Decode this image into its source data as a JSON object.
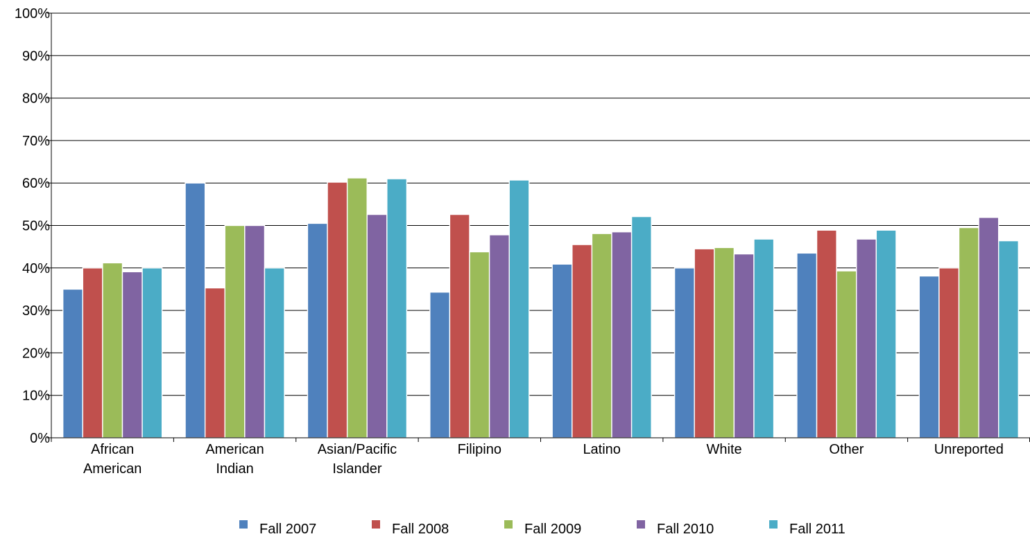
{
  "chart_data": {
    "type": "bar",
    "title": "",
    "xlabel": "",
    "ylabel": "",
    "ylim": [
      0,
      100
    ],
    "yticks": [
      "0%",
      "10%",
      "20%",
      "30%",
      "40%",
      "50%",
      "60%",
      "70%",
      "80%",
      "90%",
      "100%"
    ],
    "grid": true,
    "legend_position": "bottom",
    "categories": [
      [
        "African",
        "American"
      ],
      [
        "American",
        "Indian"
      ],
      [
        "Asian/Pacific",
        "Islander"
      ],
      [
        "Filipino"
      ],
      [
        "Latino"
      ],
      [
        "White"
      ],
      [
        "Other"
      ],
      [
        "Unreported"
      ]
    ],
    "series": [
      {
        "name": "Fall 2007",
        "color": "#4F81BD",
        "values": [
          35,
          60,
          50.5,
          34.3,
          40.9,
          40,
          43.5,
          38.1
        ]
      },
      {
        "name": "Fall 2008",
        "color": "#C0504D",
        "values": [
          40,
          35.3,
          60.2,
          52.6,
          45.5,
          44.5,
          48.9,
          40
        ]
      },
      {
        "name": "Fall 2009",
        "color": "#9BBB59",
        "values": [
          41.2,
          50,
          61.2,
          43.8,
          48.1,
          44.8,
          39.3,
          49.5
        ]
      },
      {
        "name": "Fall 2010",
        "color": "#8064A2",
        "values": [
          39.1,
          50,
          52.6,
          47.8,
          48.5,
          43.3,
          46.8,
          51.9
        ]
      },
      {
        "name": "Fall 2011",
        "color": "#4BACC6",
        "values": [
          40,
          40,
          61,
          60.7,
          52.1,
          46.8,
          48.9,
          46.4
        ]
      }
    ]
  }
}
